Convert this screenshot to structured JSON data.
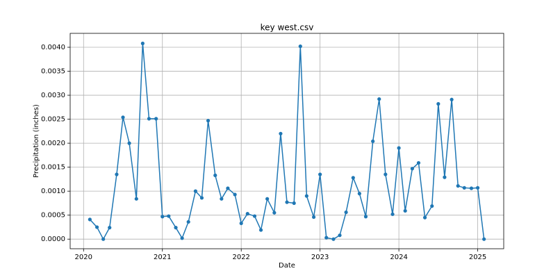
{
  "chart_data": {
    "type": "line",
    "title": "key west.csv",
    "x_label": "Date",
    "y_label": "Precipitation (inches)",
    "x": [
      2020.08,
      2020.17,
      2020.25,
      2020.33,
      2020.42,
      2020.5,
      2020.58,
      2020.67,
      2020.75,
      2020.83,
      2020.92,
      2021,
      2021.08,
      2021.17,
      2021.25,
      2021.33,
      2021.42,
      2021.5,
      2021.58,
      2021.67,
      2021.75,
      2021.83,
      2021.92,
      2022,
      2022.08,
      2022.17,
      2022.25,
      2022.33,
      2022.42,
      2022.5,
      2022.58,
      2022.67,
      2022.75,
      2022.83,
      2022.92,
      2023,
      2023.08,
      2023.17,
      2023.25,
      2023.33,
      2023.42,
      2023.5,
      2023.58,
      2023.67,
      2023.75,
      2023.83,
      2023.92,
      2024,
      2024.08,
      2024.17,
      2024.25,
      2024.33,
      2024.42,
      2024.5,
      2024.58,
      2024.67,
      2024.75,
      2024.83,
      2024.92,
      2025,
      2025.08
    ],
    "series": [
      {
        "name": "Precipitation",
        "color": "#1f77b4",
        "values": [
          0.00041,
          0.00025,
          0.0,
          0.00024,
          0.00135,
          0.00254,
          0.002,
          0.00084,
          0.00408,
          0.00251,
          0.00251,
          0.00047,
          0.00048,
          0.00024,
          2e-05,
          0.00036,
          0.001,
          0.00086,
          0.00247,
          0.00133,
          0.00084,
          0.00106,
          0.00093,
          0.00033,
          0.00053,
          0.00048,
          0.00019,
          0.00084,
          0.00055,
          0.0022,
          0.00077,
          0.00075,
          0.00402,
          0.0009,
          0.00046,
          0.00135,
          3e-05,
          0.0,
          8e-05,
          0.00056,
          0.00128,
          0.00095,
          0.00047,
          0.00204,
          0.00292,
          0.00135,
          0.00052,
          0.0019,
          0.00059,
          0.00147,
          0.00159,
          0.00045,
          0.00069,
          0.00282,
          0.00129,
          0.00291,
          0.00111,
          0.00107,
          0.00106,
          0.00107,
          0.0
        ]
      }
    ],
    "xlim": [
      2019.83,
      2025.33
    ],
    "xticks": [
      2020,
      2021,
      2022,
      2023,
      2024,
      2025
    ],
    "ylim": [
      -0.0002,
      0.00429
    ],
    "yticks": [
      {
        "value": 0,
        "label": "0.0000"
      },
      {
        "value": 0.0005,
        "label": "0.0005"
      },
      {
        "value": 0.001,
        "label": "0.0010"
      },
      {
        "value": 0.0015,
        "label": "0.0015"
      },
      {
        "value": 0.002,
        "label": "0.0020"
      },
      {
        "value": 0.0025,
        "label": "0.0025"
      },
      {
        "value": 0.003,
        "label": "0.0030"
      },
      {
        "value": 0.0035,
        "label": "0.0035"
      },
      {
        "value": 0.004,
        "label": "0.0040"
      }
    ],
    "grid": true
  }
}
